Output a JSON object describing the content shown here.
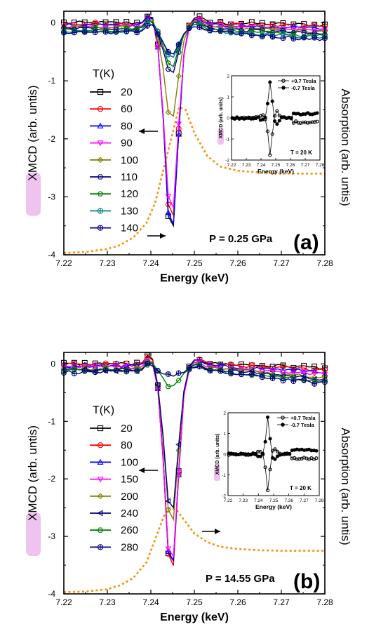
{
  "chart_data": [
    {
      "id": "a",
      "type": "line",
      "ylabel": "XMCD (arb. untis)",
      "ylabel_main": "XMCD",
      "ylabel_unit": "(arb. untis)",
      "y2label": "Absorption (arb. untis)",
      "xlabel": "Energy (keV)",
      "xlim": [
        7.22,
        7.28
      ],
      "ylim": [
        -4,
        0.2
      ],
      "xticks": [
        "7.22",
        "7.23",
        "7.24",
        "7.25",
        "7.26",
        "7.27",
        "7.28"
      ],
      "yticks": [
        "0",
        "-1",
        "-2",
        "-3",
        "-4"
      ],
      "legend_title": "T(K)",
      "legend_placement": "left",
      "pressure_label": "P = 0.25 GPa",
      "panel_label": "(a)",
      "series": [
        {
          "name": "20",
          "color": "#000000",
          "marker": "square",
          "peak": -3.7
        },
        {
          "name": "60",
          "color": "#ff0000",
          "marker": "circle",
          "peak": -3.5
        },
        {
          "name": "80",
          "color": "#0000ff",
          "marker": "triangle-up",
          "peak": -3.6
        },
        {
          "name": "90",
          "color": "#ff00ff",
          "marker": "triangle-down",
          "peak": -3.3
        },
        {
          "name": "100",
          "color": "#808000",
          "marker": "diamond",
          "peak": -1.65
        },
        {
          "name": "110",
          "color": "#000080",
          "marker": "hexagon",
          "peak": -0.8
        },
        {
          "name": "120",
          "color": "#008000",
          "marker": "pentagon",
          "peak": -0.65
        },
        {
          "name": "130",
          "color": "#008080",
          "marker": "circle-plus",
          "peak": -0.45
        },
        {
          "name": "140",
          "color": "#000080",
          "marker": "circle-plus",
          "peak": -0.4
        }
      ],
      "absorption": {
        "color": "#ff8c00",
        "x": [
          7.22,
          7.225,
          7.23,
          7.233,
          7.236,
          7.239,
          7.241,
          7.243,
          7.245,
          7.2465,
          7.248,
          7.25,
          7.253,
          7.256,
          7.26,
          7.265,
          7.27,
          7.275,
          7.28
        ],
        "y": [
          -3.97,
          -3.95,
          -3.9,
          -3.83,
          -3.7,
          -3.45,
          -3.1,
          -2.5,
          -1.9,
          -1.45,
          -1.5,
          -1.9,
          -2.3,
          -2.48,
          -2.55,
          -2.58,
          -2.6,
          -2.6,
          -2.6
        ]
      },
      "inset": {
        "ylabel": "XMCD (arb. units)",
        "ylabel_main": "XMCD",
        "ylabel_unit": "(arb. units)",
        "xlabel": "Energy (keV)",
        "xlim": [
          7.22,
          7.28
        ],
        "ylim": [
          -2,
          2
        ],
        "xticks": [
          "7.22",
          "7.23",
          "7.24",
          "7.25",
          "7.26",
          "7.27",
          "7.28"
        ],
        "yticks": [
          "2",
          "1",
          "0",
          "-1",
          "-2"
        ],
        "temperature_label": "T = 20 K",
        "series": [
          {
            "name": "+0.7 Tesla",
            "marker": "open-circle",
            "sign": -1
          },
          {
            "name": "-0.7 Tesla",
            "marker": "filled-circle",
            "sign": 1
          }
        ]
      }
    },
    {
      "id": "b",
      "type": "line",
      "ylabel": "XMCD (arb. untis)",
      "ylabel_main": "XMCD",
      "ylabel_unit": "(arb. untis)",
      "y2label": "Absorption (arb. untis)",
      "xlabel": "Energy (keV)",
      "xlim": [
        7.22,
        7.28
      ],
      "ylim": [
        -4,
        0.2
      ],
      "xticks": [
        "7.22",
        "7.23",
        "7.24",
        "7.25",
        "7.26",
        "7.27",
        "7.28"
      ],
      "yticks": [
        "0",
        "-1",
        "-2",
        "-3",
        "-4"
      ],
      "legend_title": "T(K)",
      "legend_placement": "left",
      "pressure_label": "P = 14.55 GPa",
      "panel_label": "(b)",
      "series": [
        {
          "name": "20",
          "color": "#000000",
          "marker": "square",
          "peak": -3.65
        },
        {
          "name": "80",
          "color": "#ff0000",
          "marker": "circle",
          "peak": -3.7
        },
        {
          "name": "100",
          "color": "#0000ff",
          "marker": "triangle-up",
          "peak": -3.6
        },
        {
          "name": "150",
          "color": "#ff00ff",
          "marker": "triangle-down",
          "peak": -3.5
        },
        {
          "name": "200",
          "color": "#808000",
          "marker": "diamond",
          "peak": -2.75
        },
        {
          "name": "240",
          "color": "#000080",
          "marker": "triangle-left",
          "peak": -2.55
        },
        {
          "name": "260",
          "color": "#008000",
          "marker": "hexagon",
          "peak": -0.3
        },
        {
          "name": "280",
          "color": "#000080",
          "marker": "circle-plus",
          "peak": -0.05
        }
      ],
      "absorption": {
        "color": "#ff8c00",
        "x": [
          7.22,
          7.225,
          7.23,
          7.233,
          7.236,
          7.239,
          7.241,
          7.243,
          7.2445,
          7.246,
          7.248,
          7.25,
          7.253,
          7.256,
          7.26,
          7.265,
          7.27,
          7.275,
          7.28
        ],
        "y": [
          -3.97,
          -3.96,
          -3.92,
          -3.85,
          -3.72,
          -3.45,
          -3.05,
          -2.65,
          -2.5,
          -2.55,
          -2.75,
          -2.95,
          -3.1,
          -3.18,
          -3.22,
          -3.24,
          -3.25,
          -3.25,
          -3.25
        ]
      },
      "inset": {
        "ylabel": "XMCD (arb. units)",
        "ylabel_main": "XMCD",
        "ylabel_unit": "(arb. units)",
        "xlabel": "Energy (keV)",
        "xlim": [
          7.22,
          7.28
        ],
        "ylim": [
          -2,
          2
        ],
        "xticks": [
          "7.22",
          "7.23",
          "7.24",
          "7.25",
          "7.26",
          "7.27",
          "7.28"
        ],
        "yticks": [
          "2",
          "1",
          "0",
          "-1",
          "-2"
        ],
        "temperature_label": "T = 20 K",
        "series": [
          {
            "name": "+0.7 Tesla",
            "marker": "open-circle",
            "sign": -1
          },
          {
            "name": "-0.7 Tesla",
            "marker": "filled-circle",
            "sign": 1
          }
        ]
      }
    }
  ]
}
